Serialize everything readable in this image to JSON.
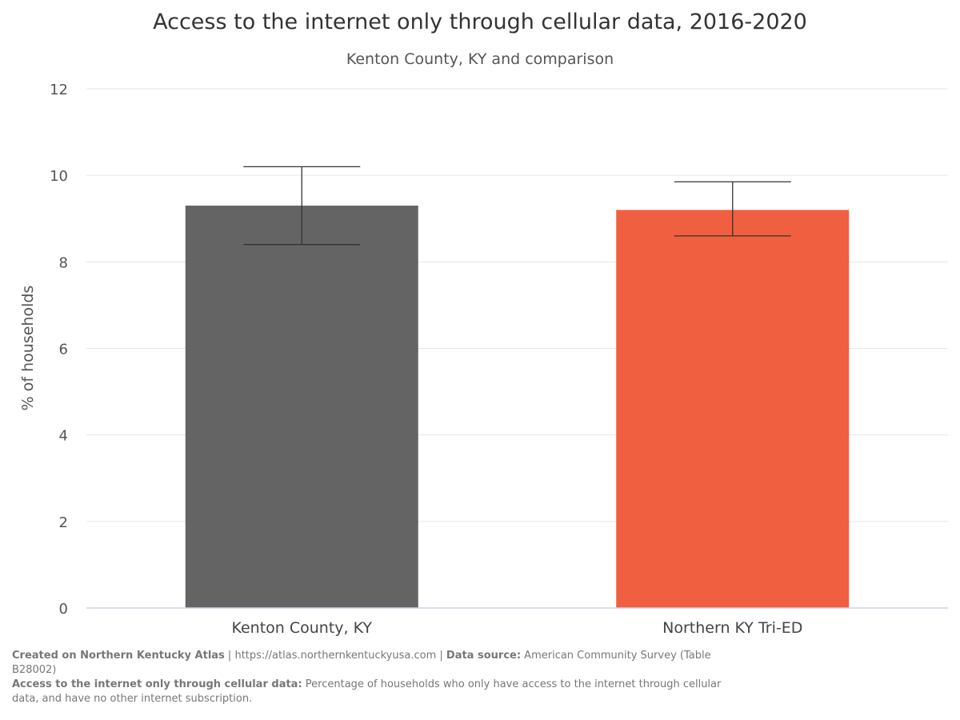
{
  "chart_data": {
    "type": "bar",
    "title": "Access to the internet only through cellular data, 2016-2020",
    "subtitle": "Kenton County, KY and comparison",
    "xlabel": "",
    "ylabel": "% of households",
    "categories": [
      "Kenton County, KY",
      "Northern KY Tri-ED"
    ],
    "values": [
      9.3,
      9.2
    ],
    "error_low": [
      8.4,
      8.6
    ],
    "error_high": [
      10.2,
      9.85
    ],
    "colors": [
      "#646464",
      "#f05f3f"
    ],
    "ylim": [
      0,
      12
    ],
    "yticks": [
      0,
      2,
      4,
      6,
      8,
      10,
      12
    ],
    "ytick_labels": [
      "0",
      "2",
      "4",
      "6",
      "8",
      "10",
      "12"
    ],
    "grid": true,
    "legend": "none"
  },
  "footer": {
    "created_label": "Created on Northern Kentucky Atlas",
    "sep1": " | ",
    "url": "https://atlas.northernkentuckyusa.com",
    "sep2": " | ",
    "source_label": "Data source:",
    "source_value": " American Community Survey (Table B28002)",
    "definition_label": "Access to the internet only through cellular data:",
    "definition_text": " Percentage of households who only have access to the internet through cellular data, and have no other internet subscription."
  },
  "colors": {
    "grid": "#e6e6e6",
    "axis": "#ccd6eb",
    "error_bar": "#333333"
  }
}
